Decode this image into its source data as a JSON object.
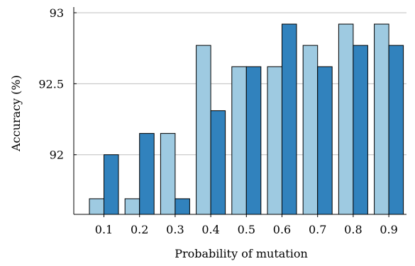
{
  "chart_data": {
    "type": "bar",
    "categories": [
      "0.1",
      "0.2",
      "0.3",
      "0.4",
      "0.5",
      "0.6",
      "0.7",
      "0.8",
      "0.9"
    ],
    "series": [
      {
        "values": [
          91.69,
          91.69,
          92.15,
          92.77,
          92.62,
          92.62,
          92.77,
          92.92,
          92.92
        ],
        "color": "#9ecae1"
      },
      {
        "values": [
          92.0,
          92.15,
          91.69,
          92.31,
          92.62,
          92.92,
          92.62,
          92.77,
          92.77
        ],
        "color": "#3182bd"
      }
    ],
    "title": "",
    "xlabel": "Probability of mutation",
    "ylabel": "Accuracy (%)",
    "ylim": [
      91.58,
      93.0
    ],
    "yticks": [
      92,
      92.5,
      93
    ],
    "ytick_labels": [
      "92",
      "92.5",
      "93"
    ],
    "grid": "horizontal",
    "legend": "none"
  }
}
